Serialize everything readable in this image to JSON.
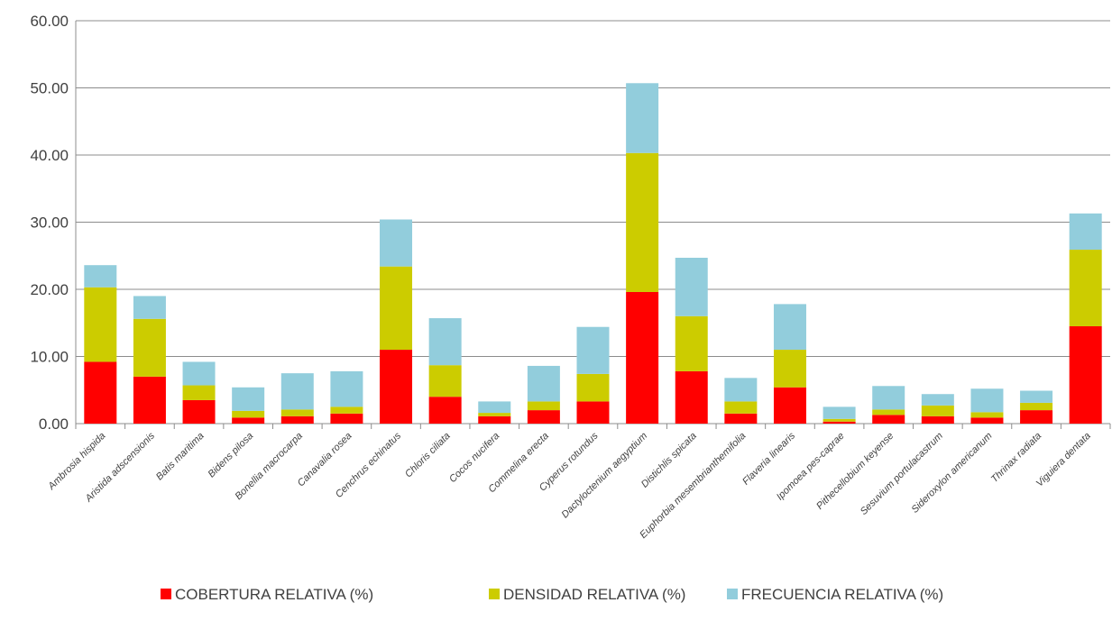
{
  "chart_data": {
    "type": "bar",
    "stacked": true,
    "categories": [
      "Ambrosia hispida",
      "Aristida adscensionis",
      "Batis maritima",
      "Bidens pilosa",
      "Bonellia macrocarpa",
      "Canavalia rosea",
      "Cenchrus echinatus",
      "Chloris ciliata",
      "Cocos nucifera",
      "Commelina erecta",
      "Cyperus rotundus",
      "Dactyloctenium aegyptium",
      "Distichlis spicata",
      "Euphorbia mesembrianthemifolia",
      "Flaveria linearis",
      "Ipomoea pes-caprae",
      "Pithecellobium keyense",
      "Sesuvium portulacastrum",
      "Sideroxylon americanum",
      "Thrinax radiata",
      "Viguiera dentata"
    ],
    "series": [
      {
        "name": "COBERTURA RELATIVA (%)",
        "color": "#ff0000",
        "values": [
          9.2,
          7.0,
          3.5,
          0.9,
          1.1,
          1.5,
          11.0,
          4.0,
          1.1,
          2.0,
          3.3,
          19.6,
          7.8,
          1.5,
          5.4,
          0.3,
          1.3,
          1.1,
          0.9,
          2.0,
          14.5
        ]
      },
      {
        "name": "DENSIDAD RELATIVA (%)",
        "color": "#cccc00",
        "values": [
          11.1,
          8.6,
          2.2,
          1.0,
          1.0,
          1.0,
          12.4,
          4.7,
          0.5,
          1.3,
          4.1,
          20.7,
          8.2,
          1.8,
          5.6,
          0.4,
          0.8,
          1.6,
          0.8,
          1.1,
          11.4
        ]
      },
      {
        "name": "FRECUENCIA RELATIVA (%)",
        "color": "#92cddc",
        "values": [
          3.3,
          3.4,
          3.5,
          3.5,
          5.4,
          5.3,
          7.0,
          7.0,
          1.7,
          5.3,
          7.0,
          10.4,
          8.7,
          3.5,
          6.8,
          1.8,
          3.5,
          1.7,
          3.5,
          1.8,
          5.4
        ]
      }
    ],
    "ylim": [
      0,
      60
    ],
    "yticks": [
      "0.00",
      "10.00",
      "20.00",
      "30.00",
      "40.00",
      "50.00",
      "60.00"
    ],
    "ytick_values": [
      0,
      10,
      20,
      30,
      40,
      50,
      60
    ],
    "grid": true,
    "legend_position": "bottom",
    "title": "",
    "xlabel": "",
    "ylabel": ""
  }
}
